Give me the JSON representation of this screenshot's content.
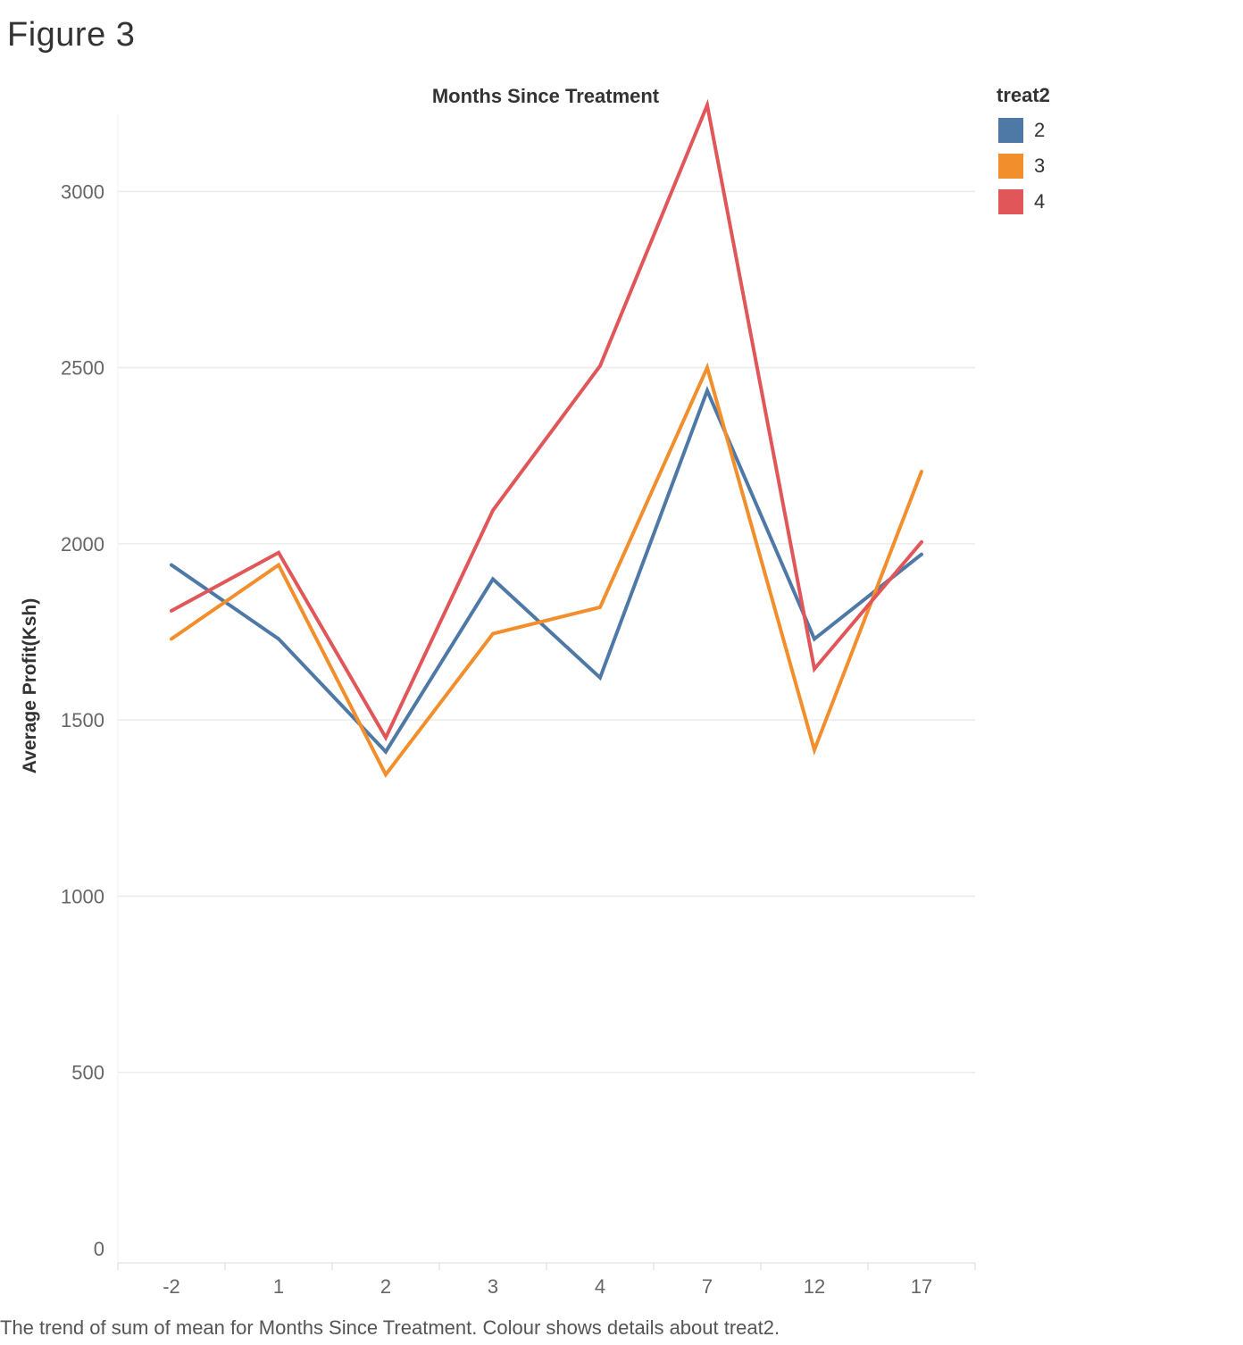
{
  "sheet_title": "Figure 3",
  "caption": "The trend of sum of mean for Months Since Treatment.  Colour shows details about treat2.",
  "legend": {
    "title": "treat2",
    "placement": "top-right"
  },
  "colors": {
    "gridline": "#ebebeb",
    "axis_text": "#666666"
  },
  "chart_data": {
    "type": "line",
    "title": "Months Since Treatment",
    "xlabel": "",
    "ylabel": "Average Profit(Ksh)",
    "categories": [
      "-2",
      "1",
      "2",
      "3",
      "4",
      "7",
      "12",
      "17"
    ],
    "ylim": [
      0,
      3300
    ],
    "yticks": [
      "0",
      "500",
      "1000",
      "1500",
      "2000",
      "2500",
      "3000"
    ],
    "grid": true,
    "series": [
      {
        "name": "2",
        "color": "#4e79a7",
        "values": [
          1940,
          1730,
          1410,
          1900,
          1620,
          2435,
          1730,
          1970
        ]
      },
      {
        "name": "3",
        "color": "#f28e2b",
        "values": [
          1730,
          1940,
          1345,
          1745,
          1820,
          2500,
          1415,
          2205
        ]
      },
      {
        "name": "4",
        "color": "#e15759",
        "values": [
          1810,
          1975,
          1450,
          2095,
          2505,
          3245,
          1645,
          2005
        ]
      }
    ]
  }
}
